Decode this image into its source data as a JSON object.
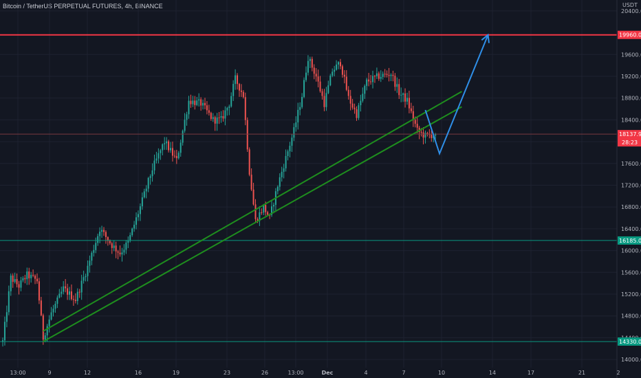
{
  "chart_data": {
    "type": "candlestick",
    "title": "Bitcoin / TetherUS PERPETUAL FUTURES, 4h, BINANCE",
    "price_unit": "USDT",
    "y_axis_ticks": [
      "20400.00",
      "19960.00",
      "19600.00",
      "19200.00",
      "18800.00",
      "18400.00",
      "18137.91",
      "18000.00",
      "17600.00",
      "17200.00",
      "16800.00",
      "16400.00",
      "16185.00",
      "16000.00",
      "15600.00",
      "15200.00",
      "14800.00",
      "14400.00",
      "14330.00",
      "14000.00"
    ],
    "x_axis_ticks": [
      {
        "label": "13:00",
        "bold": false
      },
      {
        "label": "9",
        "bold": false
      },
      {
        "label": "12",
        "bold": false
      },
      {
        "label": "16",
        "bold": false
      },
      {
        "label": "19",
        "bold": false
      },
      {
        "label": "23",
        "bold": false
      },
      {
        "label": "26",
        "bold": false
      },
      {
        "label": "13:00",
        "bold": false
      },
      {
        "label": "Dec",
        "bold": true
      },
      {
        "label": "4",
        "bold": false
      },
      {
        "label": "7",
        "bold": false
      },
      {
        "label": "10",
        "bold": false
      },
      {
        "label": "14",
        "bold": false
      },
      {
        "label": "17",
        "bold": false
      },
      {
        "label": "21",
        "bold": false
      },
      {
        "label": "2",
        "bold": false
      }
    ],
    "ylim": [
      13850,
      20600
    ],
    "candle_count": 227,
    "waypoints": [
      [
        0,
        14330
      ],
      [
        4,
        15500
      ],
      [
        8,
        15350
      ],
      [
        12,
        15550
      ],
      [
        17,
        15450
      ],
      [
        20,
        14400
      ],
      [
        24,
        14850
      ],
      [
        30,
        15300
      ],
      [
        36,
        15100
      ],
      [
        42,
        15700
      ],
      [
        48,
        16400
      ],
      [
        54,
        16100
      ],
      [
        58,
        15950
      ],
      [
        62,
        16150
      ],
      [
        68,
        16800
      ],
      [
        74,
        17500
      ],
      [
        80,
        18000
      ],
      [
        86,
        17650
      ],
      [
        92,
        18750
      ],
      [
        98,
        18700
      ],
      [
        104,
        18400
      ],
      [
        108,
        18400
      ],
      [
        112,
        18700
      ],
      [
        115,
        19150
      ],
      [
        119,
        18850
      ],
      [
        122,
        17450
      ],
      [
        125,
        16550
      ],
      [
        129,
        16800
      ],
      [
        132,
        16600
      ],
      [
        136,
        17200
      ],
      [
        140,
        17700
      ],
      [
        144,
        18200
      ],
      [
        148,
        18850
      ],
      [
        151,
        19550
      ],
      [
        155,
        19200
      ],
      [
        159,
        18700
      ],
      [
        163,
        19300
      ],
      [
        167,
        19450
      ],
      [
        171,
        18800
      ],
      [
        175,
        18500
      ],
      [
        180,
        19100
      ],
      [
        186,
        19200
      ],
      [
        192,
        19250
      ],
      [
        196,
        18900
      ],
      [
        200,
        18750
      ],
      [
        205,
        18200
      ],
      [
        209,
        18100
      ],
      [
        214,
        18137.91
      ]
    ],
    "horizontal_levels": [
      {
        "value": 19960,
        "label": "19960.00",
        "color": "#f23645"
      },
      {
        "value": 16185,
        "label": "16185.00",
        "color": "#089981"
      },
      {
        "value": 14330,
        "label": "14330.00",
        "color": "#089981"
      }
    ],
    "current_price": {
      "value": 18137.91,
      "label": "18137.91",
      "countdown": "28:23",
      "color": "#f23645"
    },
    "trend_channel": {
      "color": "#1e8e1e",
      "upper": {
        "start": {
          "candle": 20,
          "price": 14520
        },
        "end": {
          "candle": 227,
          "price": 18920
        }
      },
      "lower": {
        "start": {
          "candle": 20,
          "price": 14330
        },
        "end": {
          "candle": 227,
          "price": 18640
        }
      }
    },
    "projection_path": {
      "color": "#2f8fe8",
      "points": [
        {
          "candle": 209,
          "price": 18580
        },
        {
          "candle": 216,
          "price": 17780
        },
        {
          "candle": 240,
          "price": 19960
        }
      ]
    },
    "colors": {
      "background": "#131722",
      "up": "#26a69a",
      "down": "#ef5350",
      "grid": "#1e2230",
      "axis_text": "#b2b5be"
    }
  }
}
